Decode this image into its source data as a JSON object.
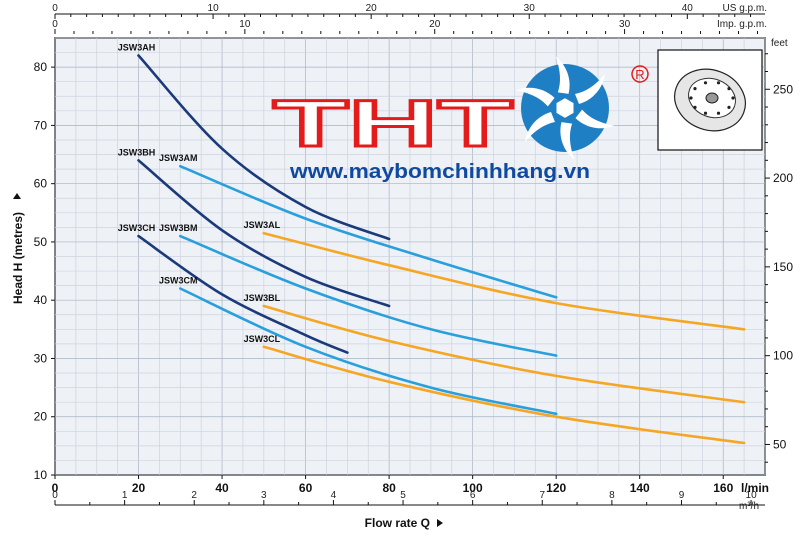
{
  "chart_data": {
    "type": "line",
    "xlabel": "Flow rate Q",
    "ylabel": "Head H (metres)",
    "xunit": "l/min",
    "xlim": [
      0,
      170
    ],
    "ylim": [
      10,
      85
    ],
    "x_ticks": [
      "0",
      "20",
      "40",
      "60",
      "80",
      "100",
      "120",
      "140",
      "160"
    ],
    "y_ticks": [
      "10",
      "20",
      "30",
      "40",
      "50",
      "60",
      "70",
      "80"
    ],
    "grid": true,
    "secondary_axes": {
      "right": {
        "label": "feet",
        "ticks": [
          "50",
          "100",
          "150",
          "200",
          "250"
        ]
      },
      "top_us": {
        "label": "US g.p.m.",
        "ticks": [
          "0",
          "10",
          "20",
          "30",
          "40"
        ]
      },
      "top_imp": {
        "label": "Imp. g.p.m.",
        "ticks": [
          "0",
          "10",
          "20",
          "30"
        ]
      },
      "bottom_m3h": {
        "label": "m³/h",
        "ticks": [
          "0",
          "1",
          "2",
          "3",
          "4",
          "5",
          "6",
          "7",
          "8",
          "9",
          "10"
        ]
      }
    },
    "series": [
      {
        "name": "JSW3AH",
        "color": "#1b3a7a",
        "points": [
          [
            20,
            82
          ],
          [
            40,
            66
          ],
          [
            60,
            56
          ],
          [
            80,
            50.5
          ]
        ]
      },
      {
        "name": "JSW3BH",
        "color": "#1b3a7a",
        "points": [
          [
            20,
            64
          ],
          [
            40,
            52
          ],
          [
            60,
            44
          ],
          [
            80,
            39
          ]
        ]
      },
      {
        "name": "JSW3CH",
        "color": "#1b3a7a",
        "points": [
          [
            20,
            51
          ],
          [
            40,
            41
          ],
          [
            60,
            34
          ],
          [
            70,
            31
          ]
        ]
      },
      {
        "name": "JSW3AM",
        "color": "#29a0dc",
        "points": [
          [
            30,
            63
          ],
          [
            60,
            54
          ],
          [
            90,
            47
          ],
          [
            120,
            40.5
          ]
        ]
      },
      {
        "name": "JSW3BM",
        "color": "#29a0dc",
        "points": [
          [
            30,
            51
          ],
          [
            60,
            42
          ],
          [
            90,
            35
          ],
          [
            120,
            30.5
          ]
        ]
      },
      {
        "name": "JSW3CM",
        "color": "#29a0dc",
        "points": [
          [
            30,
            42
          ],
          [
            60,
            32
          ],
          [
            90,
            25
          ],
          [
            120,
            20.5
          ]
        ]
      },
      {
        "name": "JSW3AL",
        "color": "#f5a623",
        "points": [
          [
            50,
            51.5
          ],
          [
            80,
            46
          ],
          [
            120,
            39.5
          ],
          [
            165,
            35
          ]
        ]
      },
      {
        "name": "JSW3BL",
        "color": "#f5a623",
        "points": [
          [
            50,
            39
          ],
          [
            80,
            33
          ],
          [
            120,
            27
          ],
          [
            165,
            22.5
          ]
        ]
      },
      {
        "name": "JSW3CL",
        "color": "#f5a623",
        "points": [
          [
            50,
            32
          ],
          [
            80,
            26
          ],
          [
            120,
            20
          ],
          [
            165,
            15.5
          ]
        ]
      }
    ]
  },
  "logo": {
    "brand": "THT",
    "registered": "®",
    "url": "www.maybomchinhhang.vn"
  }
}
